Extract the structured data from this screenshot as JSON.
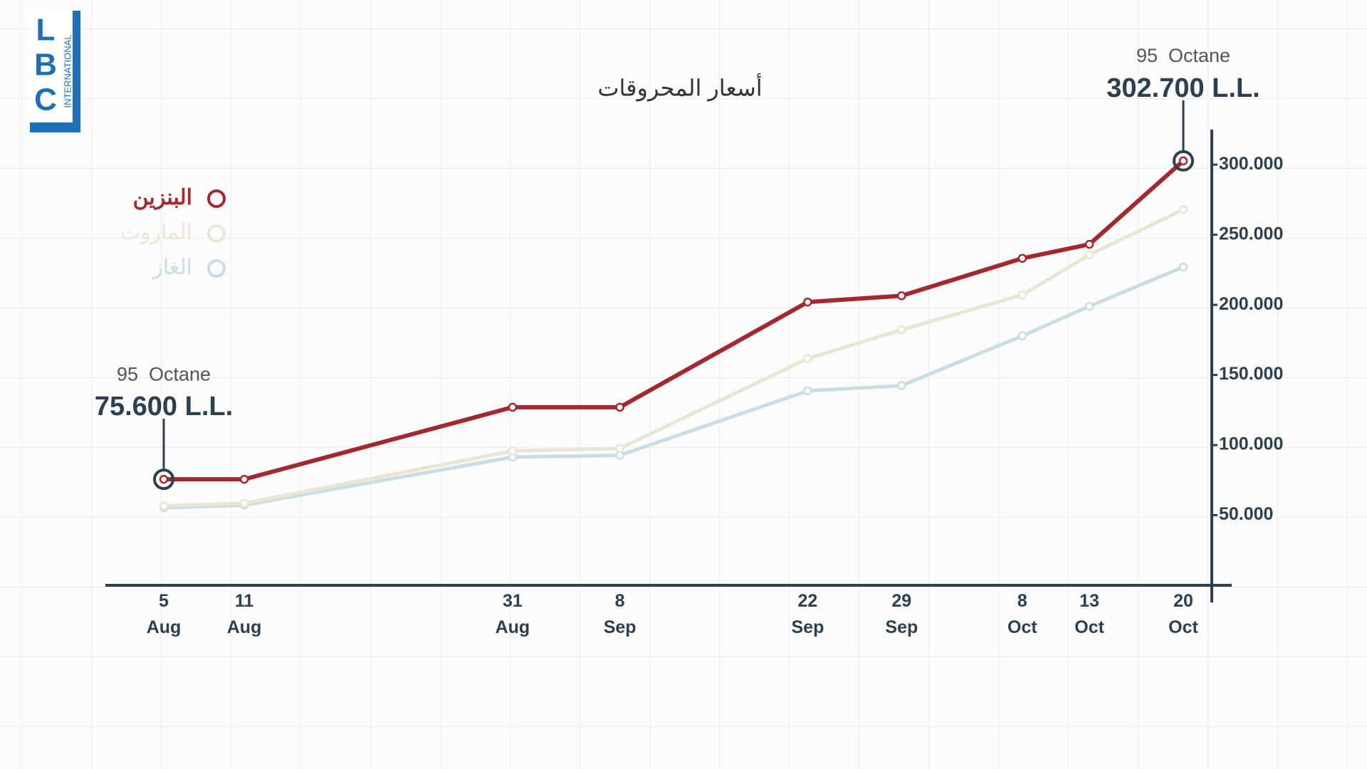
{
  "logo": {
    "letters": [
      "L",
      "B",
      "C"
    ],
    "sub": "INTERNATIONAL"
  },
  "chart_data": {
    "type": "line",
    "title": "أسعار المحروقات",
    "x": [
      "5 Aug",
      "11 Aug",
      "31 Aug",
      "8 Sep",
      "22 Sep",
      "29 Sep",
      "8 Oct",
      "13 Oct",
      "20 Oct"
    ],
    "series": [
      {
        "name": "الغاز",
        "color": "#c9dee4",
        "values": [
          55300,
          57200,
          91400,
          92700,
          138700,
          142400,
          177900,
          199000,
          227000
        ]
      },
      {
        "name": "المازوت",
        "color": "#e9e7d3",
        "values": [
          56600,
          58500,
          95800,
          97600,
          161700,
          182200,
          207100,
          235700,
          268000
        ]
      },
      {
        "name": "البنزين",
        "color": "#a3282f",
        "values": [
          75600,
          75600,
          127000,
          127000,
          202000,
          206500,
          233200,
          243200,
          302700
        ]
      }
    ],
    "ylim": [
      0,
      325000
    ],
    "yticks": [
      {
        "value": 50000,
        "label": "50.000"
      },
      {
        "value": 100000,
        "label": "100.000"
      },
      {
        "value": 150000,
        "label": "150.000"
      },
      {
        "value": 200000,
        "label": "200.000"
      },
      {
        "value": 250000,
        "label": "250.000"
      },
      {
        "value": 300000,
        "label": "300.000"
      }
    ],
    "annotations": [
      {
        "text": "95  Octane",
        "value_label": "75.600 L.L."
      },
      {
        "text": "95  Octane",
        "value_label": "302.700 L.L."
      }
    ],
    "legend": "top-left"
  }
}
